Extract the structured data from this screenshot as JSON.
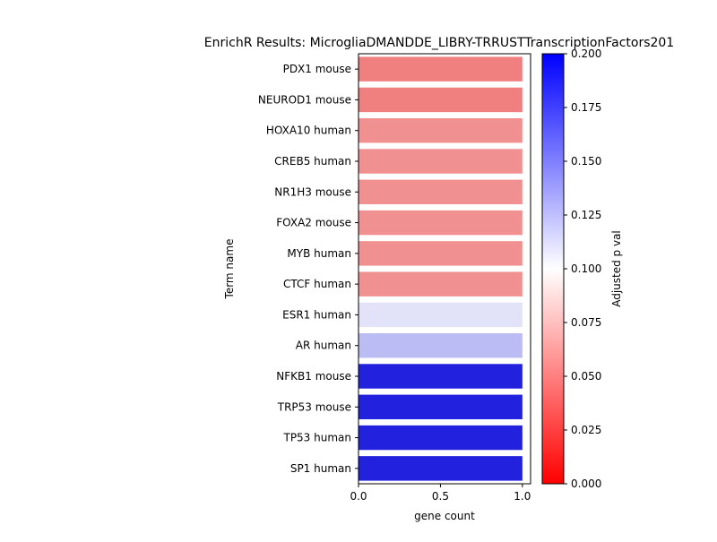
{
  "chart_data": {
    "type": "bar",
    "orientation": "horizontal",
    "title": "EnrichR Results: MicrogliaDMANDDE_LIBRY-TRRUSTTranscriptionFactors201",
    "xlabel": "gene count",
    "ylabel": "Term name",
    "xlim": [
      0,
      1.05
    ],
    "xticks": [
      0.0,
      0.5,
      1.0
    ],
    "xtick_labels": [
      "0.0",
      "0.5",
      "1.0"
    ],
    "grid": false,
    "categories": [
      "PDX1 mouse",
      "NEUROD1 mouse",
      "HOXA10 human",
      "CREB5 human",
      "NR1H3 mouse",
      "FOXA2 mouse",
      "MYB human",
      "CTCF human",
      "ESR1 human",
      "AR human",
      "NFKB1 mouse",
      "TRP53 mouse",
      "TP53 human",
      "SP1 human"
    ],
    "values": [
      1,
      1,
      1,
      1,
      1,
      1,
      1,
      1,
      1,
      1,
      1,
      1,
      1,
      1
    ],
    "adjusted_p_values": [
      0.057,
      0.057,
      0.062,
      0.062,
      0.062,
      0.062,
      0.062,
      0.062,
      0.11,
      0.132,
      0.183,
      0.183,
      0.183,
      0.183
    ],
    "bar_colors": [
      "#f08080",
      "#f08080",
      "#f19090",
      "#f19090",
      "#f19090",
      "#f19090",
      "#f19090",
      "#f19090",
      "#e2e2f8",
      "#bcbcf4",
      "#2222de",
      "#2222de",
      "#2222de",
      "#2222de"
    ],
    "colorbar": {
      "label": "Adjusted p val",
      "range": [
        0,
        0.2
      ],
      "ticks": [
        0.0,
        0.025,
        0.05,
        0.075,
        0.1,
        0.125,
        0.15,
        0.175,
        0.2
      ],
      "tick_labels": [
        "0.000",
        "0.025",
        "0.050",
        "0.075",
        "0.100",
        "0.125",
        "0.150",
        "0.175",
        "0.200"
      ],
      "colormap": "bwr_r",
      "colors": {
        "low": "#ff0000",
        "mid": "#ffffff",
        "high": "#0000ff"
      }
    }
  }
}
